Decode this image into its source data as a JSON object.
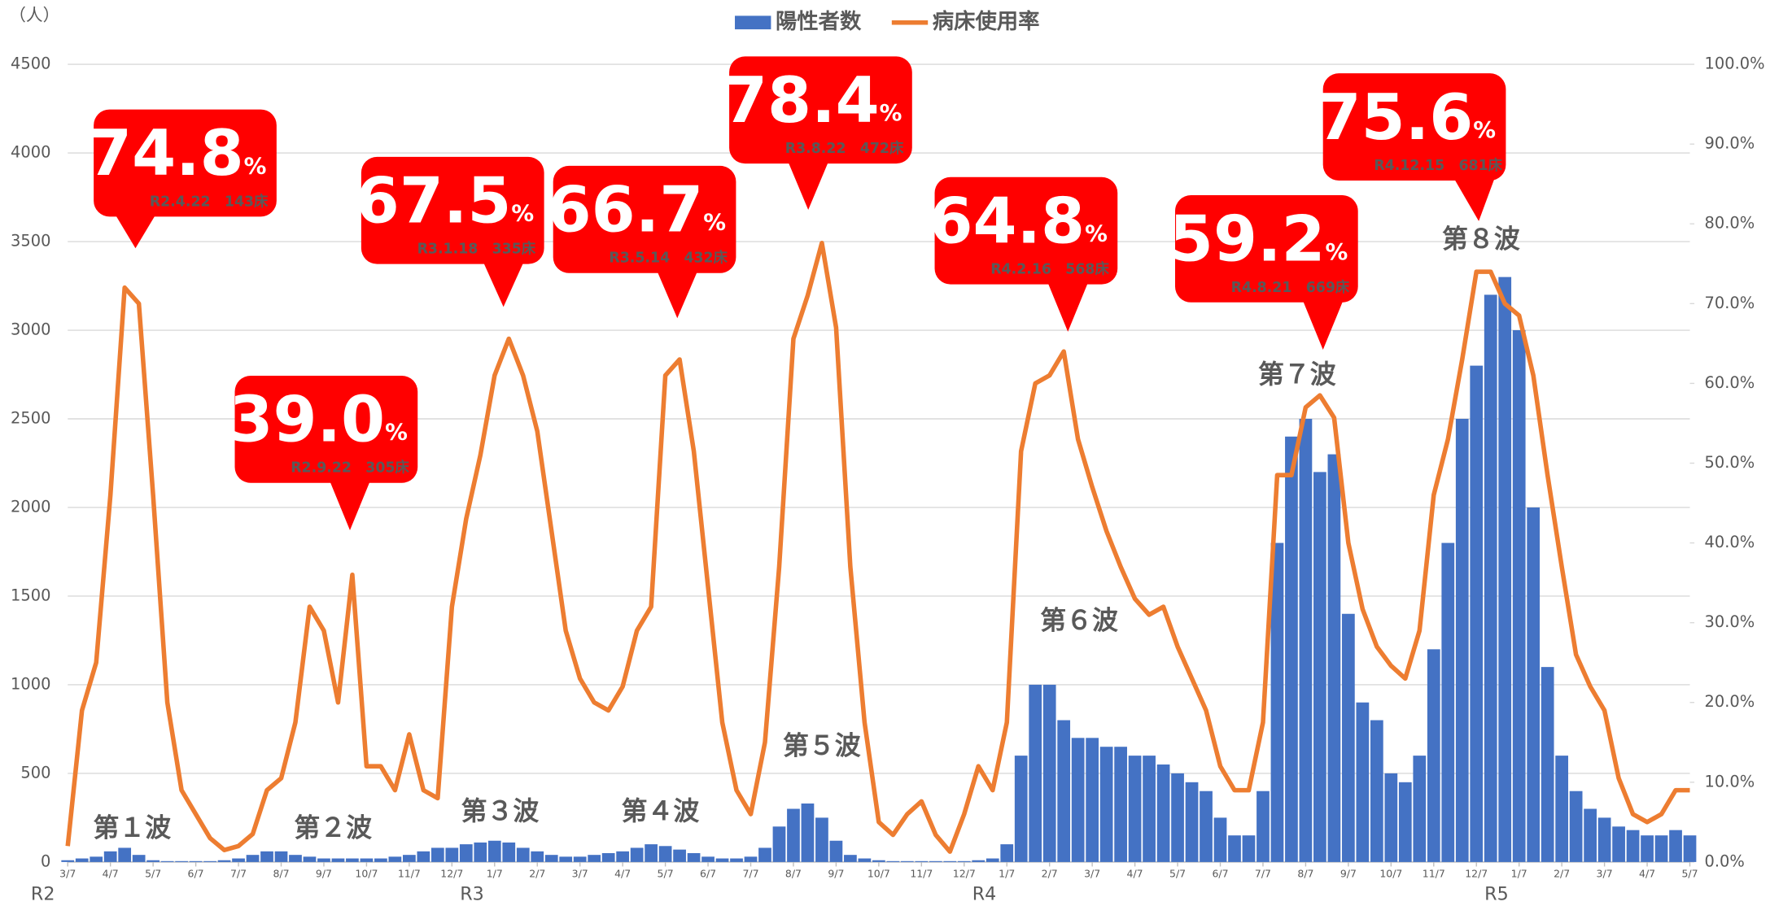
{
  "chart_data": {
    "type": "bar-line",
    "y_unit": "（人）",
    "categories": [
      "3/7",
      null,
      null,
      "4/7",
      null,
      null,
      "5/7",
      null,
      null,
      "6/7",
      null,
      null,
      "7/7",
      null,
      null,
      "8/7",
      null,
      null,
      "9/7",
      null,
      null,
      "10/7",
      null,
      null,
      "11/7",
      null,
      null,
      "12/7",
      null,
      null,
      "1/7",
      null,
      null,
      "2/7",
      null,
      null,
      "3/7",
      null,
      null,
      "4/7",
      null,
      null,
      "5/7",
      null,
      null,
      "6/7",
      null,
      null,
      "7/7",
      null,
      null,
      "8/7",
      null,
      null,
      "9/7",
      null,
      null,
      "10/7",
      null,
      null,
      "11/7",
      null,
      null,
      "12/7",
      null,
      null,
      "1/7",
      null,
      null,
      "2/7",
      null,
      null,
      "3/7",
      null,
      null,
      "4/7",
      null,
      null,
      "5/7",
      null,
      null,
      "6/7",
      null,
      null,
      "7/7",
      null,
      null,
      "8/7",
      null,
      null,
      "9/7",
      null,
      null,
      "10/7",
      null,
      null,
      "11/7",
      null,
      null,
      "12/7",
      null,
      null,
      "1/7",
      null,
      null,
      "2/7",
      null,
      null,
      "3/7",
      null,
      null,
      "4/7",
      null,
      null,
      "5/7"
    ],
    "era_labels": [
      "R2",
      null,
      null,
      null,
      null,
      null,
      null,
      null,
      null,
      null,
      null,
      null,
      null,
      null,
      null,
      null,
      null,
      null,
      null,
      null,
      null,
      null,
      null,
      null,
      null,
      null,
      null,
      null,
      null,
      null,
      "R3",
      null,
      null,
      null,
      null,
      null,
      null,
      null,
      null,
      null,
      null,
      null,
      null,
      null,
      null,
      null,
      null,
      null,
      null,
      null,
      null,
      null,
      null,
      null,
      null,
      null,
      null,
      null,
      null,
      null,
      null,
      null,
      null,
      null,
      null,
      null,
      "R4",
      null,
      null,
      null,
      null,
      null,
      null,
      null,
      null,
      null,
      null,
      null,
      null,
      null,
      null,
      null,
      null,
      null,
      null,
      null,
      null,
      null,
      null,
      null,
      null,
      null,
      null,
      null,
      null,
      null,
      null,
      null,
      null,
      null,
      null,
      null,
      "R5",
      null,
      null,
      null,
      null,
      null,
      null,
      null,
      null,
      null,
      null,
      null,
      null
    ],
    "series": [
      {
        "name": "陽性者数",
        "type": "bar",
        "color": "#4472c4",
        "values": [
          10,
          20,
          30,
          60,
          80,
          40,
          10,
          5,
          5,
          5,
          5,
          10,
          20,
          40,
          60,
          60,
          40,
          30,
          20,
          20,
          20,
          20,
          20,
          30,
          40,
          60,
          80,
          80,
          100,
          110,
          120,
          110,
          80,
          60,
          40,
          30,
          30,
          40,
          50,
          60,
          80,
          100,
          90,
          70,
          50,
          30,
          20,
          20,
          30,
          80,
          200,
          300,
          330,
          250,
          120,
          40,
          20,
          10,
          5,
          5,
          5,
          5,
          5,
          5,
          10,
          20,
          100,
          600,
          1000,
          1000,
          800,
          700,
          700,
          650,
          650,
          600,
          600,
          550,
          500,
          450,
          400,
          250,
          150,
          150,
          400,
          1800,
          2400,
          2500,
          2200,
          2300,
          1400,
          900,
          800,
          500,
          450,
          600,
          1200,
          1800,
          2500,
          2800,
          3200,
          3300,
          3000,
          2000,
          1100,
          600,
          400,
          300,
          250,
          200,
          180,
          150,
          150,
          180,
          150
        ]
      },
      {
        "name": "病床使用率",
        "type": "line",
        "axis": "y2",
        "color": "#ed7d31",
        "values": [
          2,
          19,
          25,
          46,
          72,
          70,
          46,
          20,
          9,
          6,
          3,
          1.5,
          2,
          3.5,
          9,
          10.5,
          17.5,
          32,
          29,
          20,
          36,
          12,
          12,
          9,
          16,
          9,
          8,
          32,
          43,
          51,
          61,
          65.6,
          61,
          54,
          41.5,
          29,
          23,
          20,
          19,
          22,
          29,
          32,
          61,
          63,
          51.5,
          34.5,
          17.5,
          9,
          6,
          15,
          37,
          65.6,
          71,
          77.6,
          67,
          37,
          17.5,
          5,
          3.4,
          6,
          7.6,
          3.4,
          1.3,
          6,
          12,
          9,
          17.5,
          51.5,
          60,
          61,
          64,
          53,
          47,
          41.5,
          37,
          33,
          31,
          32,
          27,
          23,
          19,
          12,
          9,
          9,
          17.5,
          48.5,
          48.5,
          57,
          58.5,
          55.7,
          40,
          31.7,
          27,
          24.6,
          23,
          29,
          46,
          53,
          63,
          74,
          74,
          70,
          68.5,
          61,
          48.5,
          37,
          26,
          22,
          19,
          10.5,
          6,
          5,
          6,
          9,
          9
        ]
      }
    ],
    "ylim": [
      0,
      4500
    ],
    "yticks": [
      0,
      500,
      1000,
      1500,
      2000,
      2500,
      3000,
      3500,
      4000,
      4500
    ],
    "y2lim": [
      0,
      100
    ],
    "y2ticks": [
      {
        "value": 0,
        "label": "0.0%"
      },
      {
        "value": 10,
        "label": "10.0%"
      },
      {
        "value": 20,
        "label": "20.0%"
      },
      {
        "value": 30,
        "label": "30.0%"
      },
      {
        "value": 40,
        "label": "40.0%"
      },
      {
        "value": 50,
        "label": "50.0%"
      },
      {
        "value": 60,
        "label": "60.0%"
      },
      {
        "value": 70,
        "label": "70.0%"
      },
      {
        "value": 80,
        "label": "80.0%"
      },
      {
        "value": 90,
        "label": "90.0%"
      },
      {
        "value": 100,
        "label": "100.0%"
      }
    ],
    "grid": true,
    "legend": "top",
    "peak_callouts": [
      {
        "text": "74.8",
        "unit": "%",
        "note": "R2.4.22　143床"
      },
      {
        "text": "39.0",
        "unit": "%",
        "note": "R2.9.22　305床"
      },
      {
        "text": "67.5",
        "unit": "%",
        "note": "R3.1.18　335床"
      },
      {
        "text": "66.7",
        "unit": "%",
        "note": "R3.5.14　432床"
      },
      {
        "text": "78.4",
        "unit": "%",
        "note": "R3.8.22　472床"
      },
      {
        "text": "64.8",
        "unit": "%",
        "note": "R4.2.16　568床"
      },
      {
        "text": "59.2",
        "unit": "%",
        "note": "R4.8.21　669床"
      },
      {
        "text": "75.6",
        "unit": "%",
        "note": "R4.12.15　681床"
      }
    ],
    "wave_labels": [
      "第１波",
      "第２波",
      "第３波",
      "第４波",
      "第５波",
      "第６波",
      "第７波",
      "第８波"
    ]
  }
}
